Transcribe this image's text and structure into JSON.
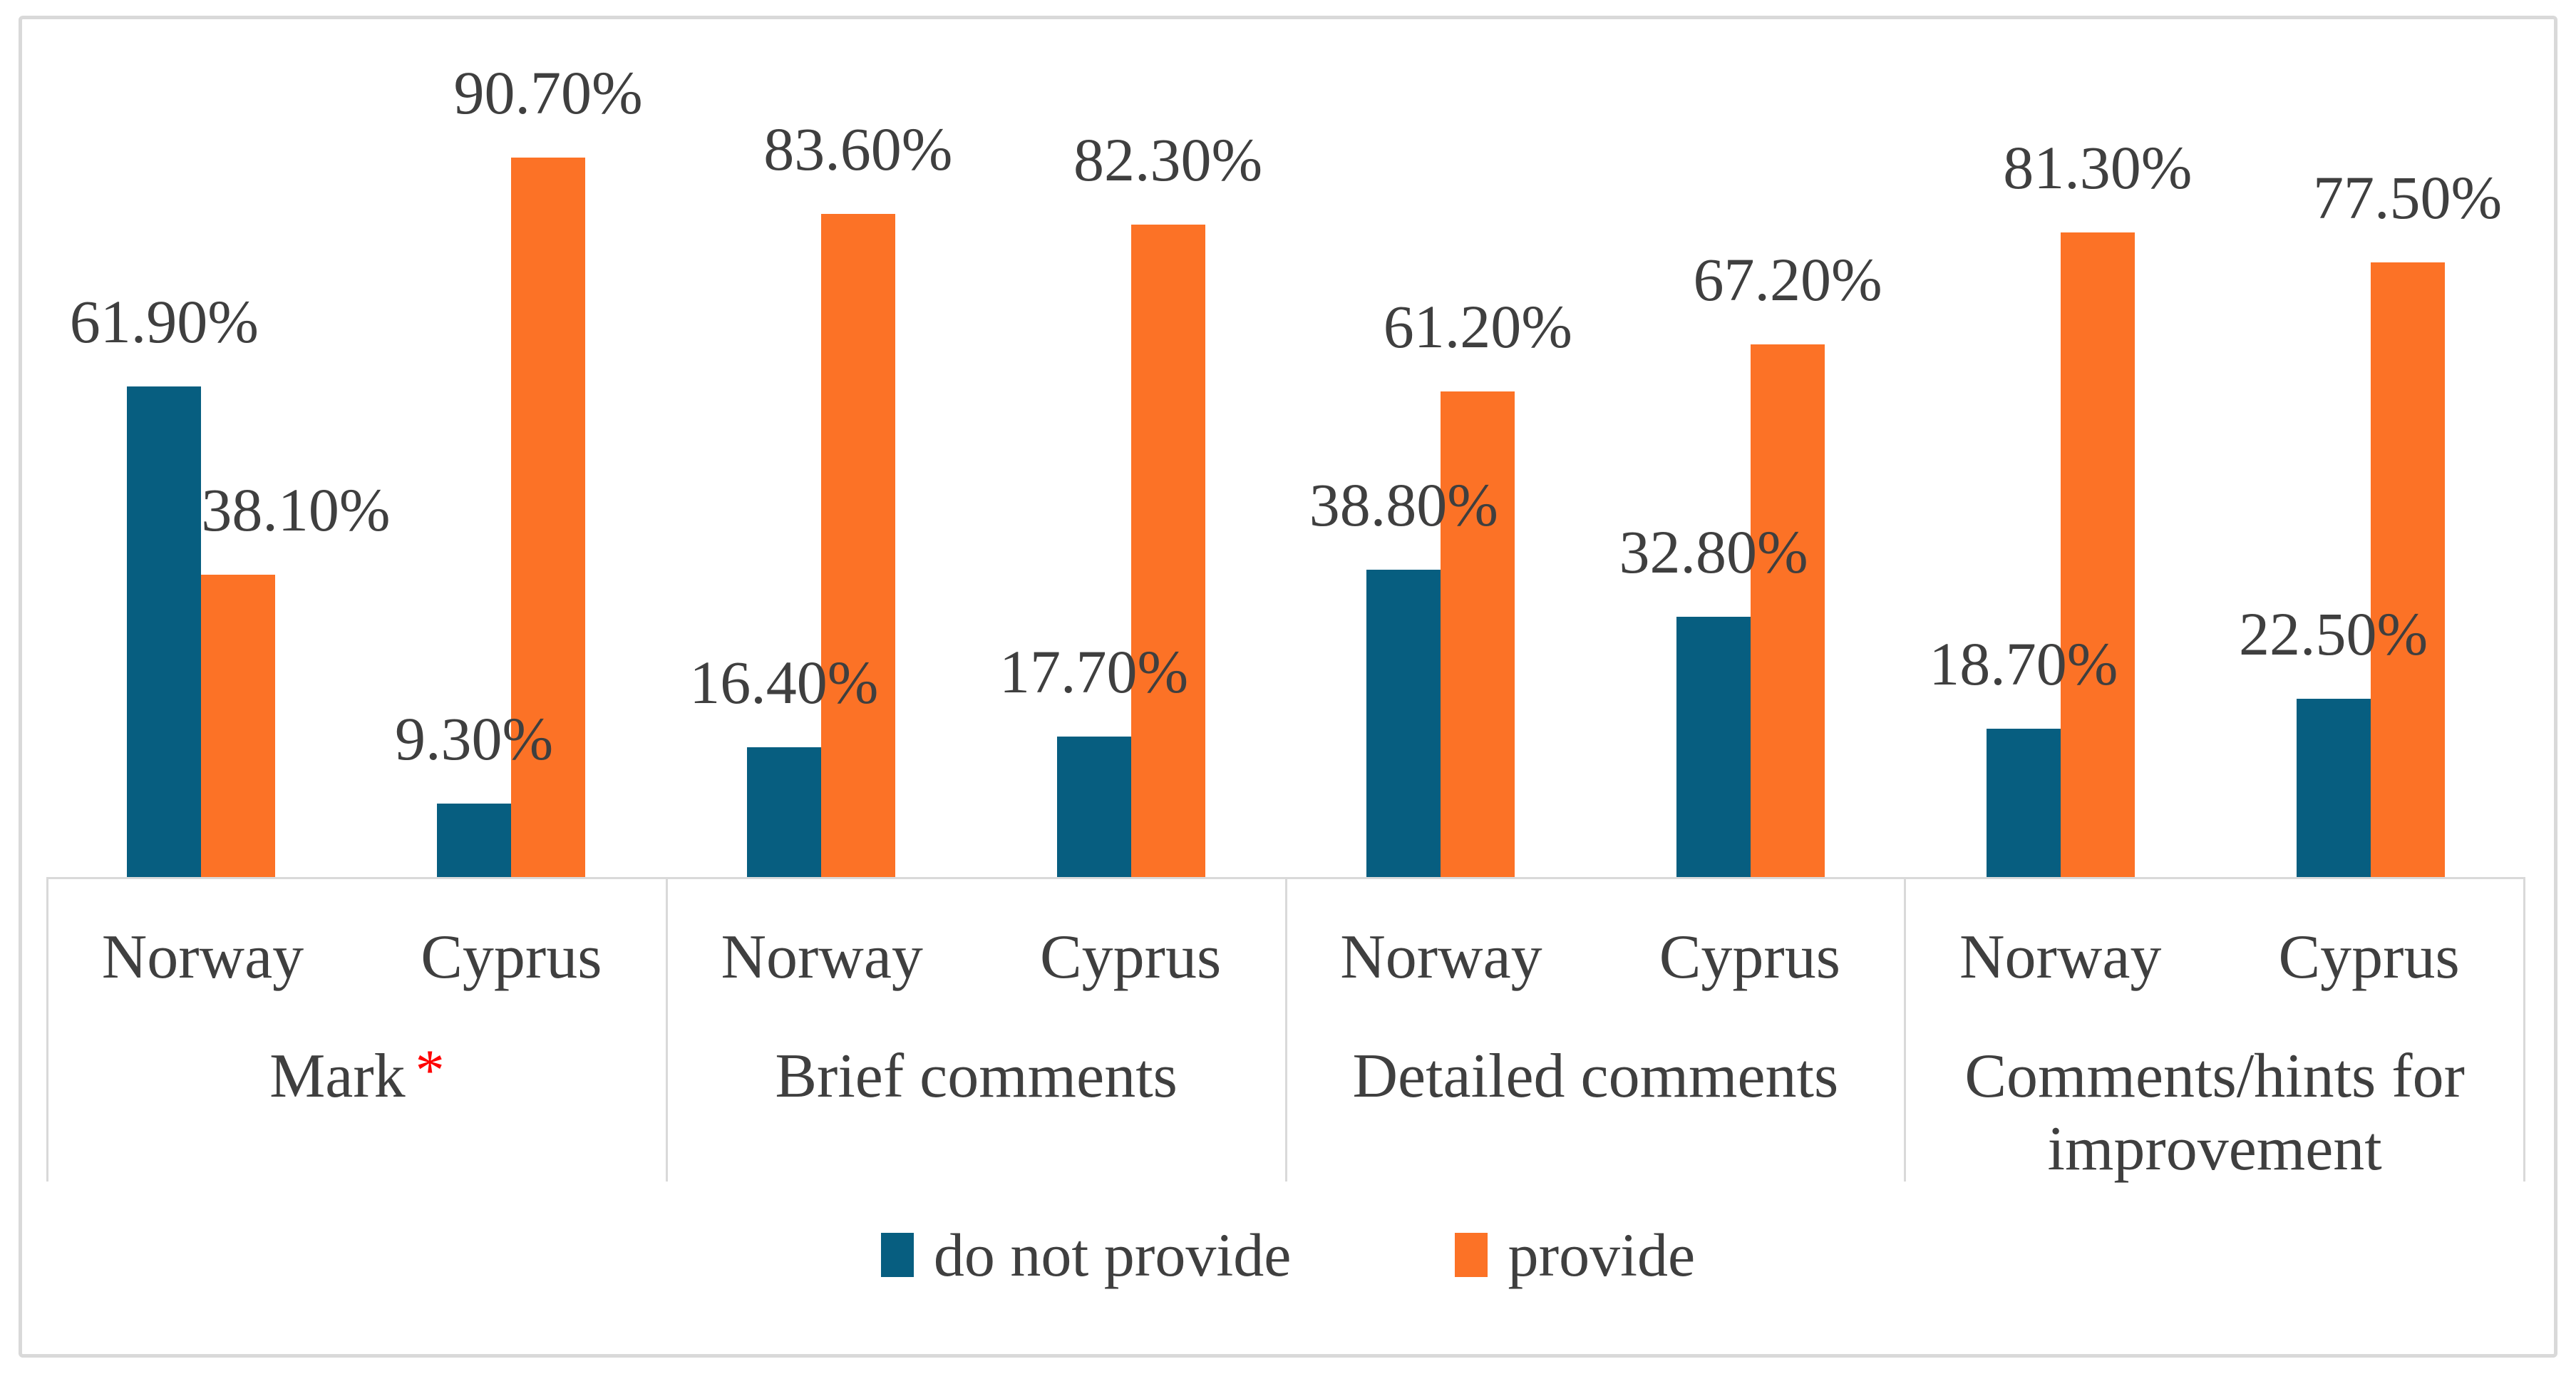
{
  "colors": {
    "series_do_not_provide": "#075e80",
    "series_provide": "#fc7226",
    "axis_line": "#d9d9d9",
    "figure_border": "#d9d9d9",
    "text": "#3f3f3f",
    "note_asterisk": "#ff0000",
    "background": "#ffffff"
  },
  "chart_data": {
    "type": "bar",
    "title": "",
    "xlabel": "",
    "ylabel": "",
    "unit": "percent",
    "ylim": [
      0,
      100
    ],
    "grid": false,
    "y_axis_visible": false,
    "legend_position": "bottom",
    "series": [
      {
        "key": "do-not-provide",
        "name": "do not provide",
        "color": "#075e80"
      },
      {
        "key": "provide",
        "name": "provide",
        "color": "#fc7226"
      }
    ],
    "groups": [
      {
        "label": "Mark",
        "note": "*",
        "items": [
          {
            "country": "Norway",
            "values": [
              61.9,
              38.1
            ],
            "labels": [
              "61.90%",
              "38.10%"
            ]
          },
          {
            "country": "Cyprus",
            "values": [
              9.3,
              90.7
            ],
            "labels": [
              "9.30%",
              "90.70%"
            ]
          }
        ]
      },
      {
        "label": "Brief comments",
        "note": "",
        "items": [
          {
            "country": "Norway",
            "values": [
              16.4,
              83.6
            ],
            "labels": [
              "16.40%",
              "83.60%"
            ]
          },
          {
            "country": "Cyprus",
            "values": [
              17.7,
              82.3
            ],
            "labels": [
              "17.70%",
              "82.30%"
            ]
          }
        ]
      },
      {
        "label": "Detailed comments",
        "note": "",
        "items": [
          {
            "country": "Norway",
            "values": [
              38.8,
              61.2
            ],
            "labels": [
              "38.80%",
              "61.20%"
            ]
          },
          {
            "country": "Cyprus",
            "values": [
              32.8,
              67.2
            ],
            "labels": [
              "32.80%",
              "67.20%"
            ]
          }
        ]
      },
      {
        "label": "Comments/hints for improvement",
        "note": "",
        "items": [
          {
            "country": "Norway",
            "values": [
              18.7,
              81.3
            ],
            "labels": [
              "18.70%",
              "81.30%"
            ]
          },
          {
            "country": "Cyprus",
            "values": [
              22.5,
              77.5
            ],
            "labels": [
              "22.50%",
              "77.50%"
            ]
          }
        ]
      }
    ]
  }
}
